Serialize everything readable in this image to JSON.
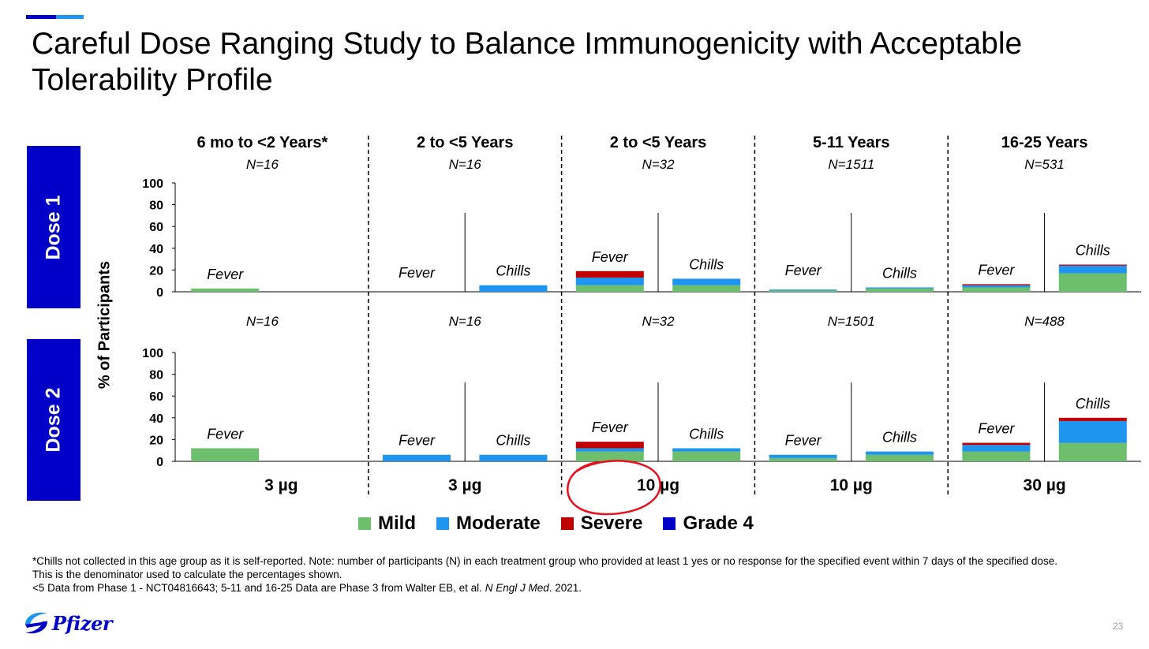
{
  "title": "Careful Dose Ranging Study to Balance Immunogenicity with Acceptable Tolerability Profile",
  "doses": [
    "Dose 1",
    "Dose 2"
  ],
  "ylabel": "% of Participants",
  "colors": {
    "Mild": "#6dbf6d",
    "Moderate": "#1e96f0",
    "Severe": "#c00000",
    "Grade 4": "#0000c9",
    "accent": "#0000c9",
    "highlight": "#e8101c"
  },
  "legend": [
    {
      "label": "Mild",
      "color": "#6dbf6d"
    },
    {
      "label": "Moderate",
      "color": "#1e96f0"
    },
    {
      "label": "Severe",
      "color": "#c00000"
    },
    {
      "label": "Grade 4",
      "color": "#0000c9"
    }
  ],
  "chart_data": {
    "type": "bar",
    "stacked": true,
    "ylim": [
      0,
      100
    ],
    "yticks": [
      0,
      20,
      40,
      60,
      80,
      100
    ],
    "series_names": [
      "Mild",
      "Moderate",
      "Severe",
      "Grade 4"
    ],
    "groups": [
      {
        "header": "6 mo to <2 Years*",
        "dose_label": "3 µg",
        "n_dose1": "N=16",
        "n_dose2": "N=16",
        "bars_dose1": [
          {
            "label": "Fever",
            "values": [
              3,
              0,
              0,
              0
            ]
          }
        ],
        "bars_dose2": [
          {
            "label": "Fever",
            "values": [
              12,
              0,
              0,
              0
            ]
          }
        ]
      },
      {
        "header": "2 to <5 Years",
        "dose_label": "3 µg",
        "n_dose1": "N=16",
        "n_dose2": "N=16",
        "bars_dose1": [
          {
            "label": "Fever",
            "values": [
              0,
              0,
              0,
              0
            ]
          },
          {
            "label": "Chills",
            "values": [
              0,
              6,
              0,
              0
            ]
          }
        ],
        "bars_dose2": [
          {
            "label": "Fever",
            "values": [
              0,
              6,
              0,
              0
            ]
          },
          {
            "label": "Chills",
            "values": [
              0,
              6,
              0,
              0
            ]
          }
        ]
      },
      {
        "header": "2 to <5 Years",
        "dose_label": "10 µg",
        "n_dose1": "N=32",
        "n_dose2": "N=32",
        "bars_dose1": [
          {
            "label": "Fever",
            "values": [
              6,
              7,
              6,
              0
            ]
          },
          {
            "label": "Chills",
            "values": [
              6,
              6,
              0,
              0
            ]
          }
        ],
        "bars_dose2": [
          {
            "label": "Fever",
            "values": [
              9,
              3,
              6,
              0
            ]
          },
          {
            "label": "Chills",
            "values": [
              9,
              3,
              0,
              0
            ]
          }
        ]
      },
      {
        "header": "5-11 Years",
        "dose_label": "10 µg",
        "n_dose1": "N=1511",
        "n_dose2": "N=1501",
        "bars_dose1": [
          {
            "label": "Fever",
            "values": [
              1,
              1,
              0,
              0
            ]
          },
          {
            "label": "Chills",
            "values": [
              3,
              1,
              0,
              0
            ]
          }
        ],
        "bars_dose2": [
          {
            "label": "Fever",
            "values": [
              3,
              3,
              0,
              0
            ]
          },
          {
            "label": "Chills",
            "values": [
              6,
              3,
              0,
              0
            ]
          }
        ]
      },
      {
        "header": "16-25 Years",
        "dose_label": "30 µg",
        "n_dose1": "N=531",
        "n_dose2": "N=488",
        "bars_dose1": [
          {
            "label": "Fever",
            "values": [
              4,
              2,
              1,
              0
            ]
          },
          {
            "label": "Chills",
            "values": [
              17,
              7,
              1,
              0
            ]
          }
        ],
        "bars_dose2": [
          {
            "label": "Fever",
            "values": [
              9,
              6,
              2,
              0
            ]
          },
          {
            "label": "Chills",
            "values": [
              17,
              20,
              3,
              0
            ]
          }
        ]
      }
    ]
  },
  "footnote": {
    "line1": "*Chills not collected in this age group as it is self-reported. Note: number of participants (N) in each treatment group who provided at least 1 yes or no response for the specified event within 7 days of the specified dose.",
    "line2": "This is the denominator used to calculate the percentages shown.",
    "line3_pre": "<5 Data from Phase 1 - NCT04816643;  5-11 and 16-25 Data are Phase 3 from Walter EB, et al. ",
    "line3_journal": "N Engl J Med",
    "line3_post": ". 2021."
  },
  "logo_text": "Pfizer",
  "page_number": "23"
}
